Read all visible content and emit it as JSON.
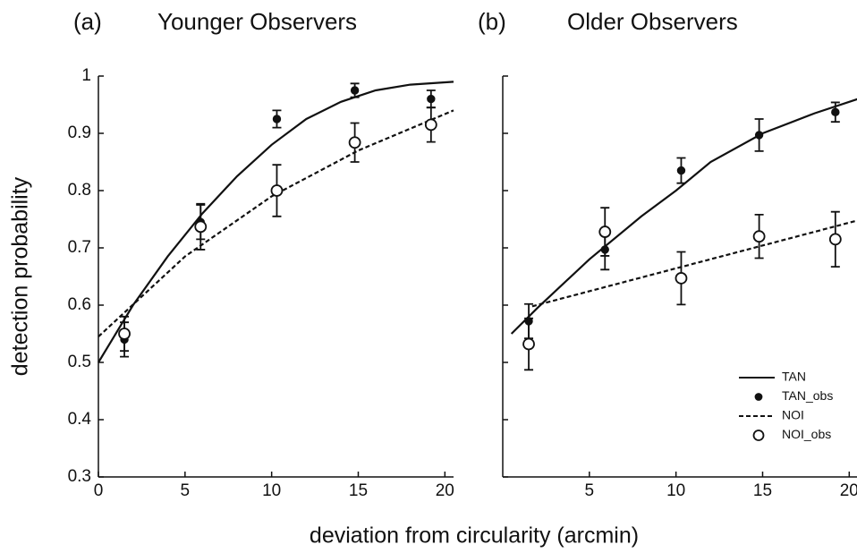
{
  "xlabel": "deviation from circularity (arcmin)",
  "chart_data": [
    {
      "type": "line",
      "panel_label": "(a)",
      "title": "Younger Observers",
      "ylabel": "detection probability",
      "xlim": [
        0,
        20.5
      ],
      "ylim": [
        0.3,
        1
      ],
      "xticks": [
        0,
        5,
        10,
        15,
        20
      ],
      "yticks": [
        0.3,
        0.4,
        0.5,
        0.6,
        0.7,
        0.8,
        0.9,
        1
      ],
      "show_ytick_labels": true,
      "series": [
        {
          "kind": "line",
          "dash": false,
          "color": "#111111",
          "x": [
            0,
            2,
            4,
            6,
            8,
            10,
            12,
            14,
            16,
            18,
            20.5
          ],
          "values": [
            0.5,
            0.6,
            0.685,
            0.76,
            0.825,
            0.88,
            0.925,
            0.955,
            0.975,
            0.985,
            0.99
          ]
        },
        {
          "kind": "points",
          "filled": true,
          "color": "#111111",
          "x": [
            1.5,
            5.9,
            10.3,
            14.8,
            19.2
          ],
          "values": [
            0.54,
            0.745,
            0.925,
            0.975,
            0.96
          ],
          "errors": [
            0.03,
            0.03,
            0.015,
            0.012,
            0.015
          ]
        },
        {
          "kind": "line",
          "dash": true,
          "color": "#111111",
          "x": [
            0,
            5,
            10,
            15,
            20.5
          ],
          "values": [
            0.545,
            0.685,
            0.79,
            0.87,
            0.94
          ]
        },
        {
          "kind": "points",
          "filled": false,
          "color": "#111111",
          "x": [
            1.5,
            5.9,
            10.3,
            14.8,
            19.2
          ],
          "values": [
            0.55,
            0.737,
            0.8,
            0.884,
            0.915
          ],
          "errors": [
            0.03,
            0.04,
            0.045,
            0.034,
            0.03
          ]
        }
      ]
    },
    {
      "type": "line",
      "panel_label": "(b)",
      "title": "Older Observers",
      "xlim": [
        0,
        20.5
      ],
      "ylim": [
        0.3,
        1
      ],
      "xticks": [
        5,
        10,
        15,
        20
      ],
      "yticks": [
        0.3,
        0.4,
        0.5,
        0.6,
        0.7,
        0.8,
        0.9,
        1
      ],
      "show_ytick_labels": false,
      "legend": "lower right",
      "series": [
        {
          "name": "TAN",
          "kind": "line",
          "dash": false,
          "color": "#111111",
          "x": [
            0.5,
            2,
            5,
            8,
            10,
            12,
            15,
            18,
            20.5
          ],
          "values": [
            0.55,
            0.595,
            0.68,
            0.755,
            0.8,
            0.85,
            0.9,
            0.935,
            0.96
          ]
        },
        {
          "name": "TAN_obs",
          "kind": "points",
          "filled": true,
          "color": "#111111",
          "x": [
            1.5,
            5.9,
            10.3,
            14.8,
            19.2
          ],
          "values": [
            0.572,
            0.697,
            0.835,
            0.897,
            0.937
          ],
          "errors": [
            0.03,
            0.035,
            0.022,
            0.028,
            0.017
          ]
        },
        {
          "name": "NOI",
          "kind": "line",
          "dash": true,
          "color": "#111111",
          "x": [
            1.7,
            20.5
          ],
          "values": [
            0.598,
            0.748
          ]
        },
        {
          "name": "NOI_obs",
          "kind": "points",
          "filled": false,
          "color": "#111111",
          "x": [
            1.5,
            5.9,
            10.3,
            14.8,
            19.2
          ],
          "values": [
            0.532,
            0.728,
            0.647,
            0.72,
            0.715
          ],
          "errors": [
            0.045,
            0.042,
            0.046,
            0.038,
            0.048
          ]
        }
      ]
    }
  ]
}
